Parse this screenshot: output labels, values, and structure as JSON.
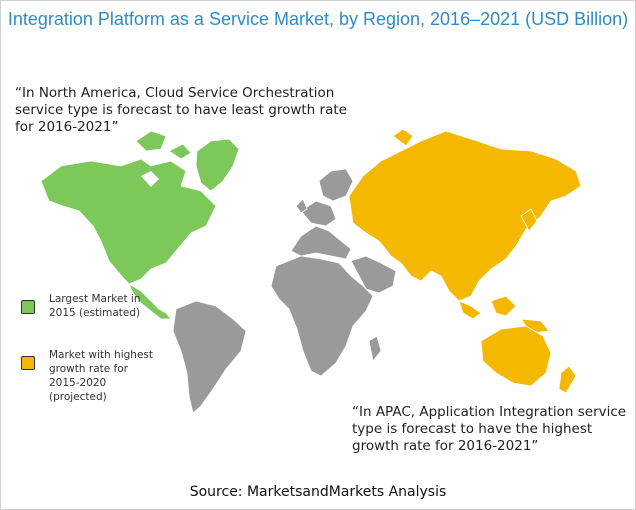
{
  "title": "Integration Platform as a Service Market, by Region, 2016–2021 (USD Billion)",
  "quotes": {
    "north_america": "“In North America, Cloud Service Orchestration service type is forecast to have least growth rate for 2016-2021”",
    "apac": "“In APAC, Application Integration service type is forecast to have the highest growth rate for 2016-2021”"
  },
  "legend": [
    {
      "label": "Largest Market in 2015 (estimated)",
      "color": "#7cc85a"
    },
    {
      "label": "Market with highest growth rate for 2015-2020 (projected)",
      "color": "#f5b800"
    }
  ],
  "regions": [
    {
      "name": "North America",
      "color": "#7cc85a"
    },
    {
      "name": "APAC",
      "color": "#f5b800"
    },
    {
      "name": "Rest of World",
      "color": "#9a9a9a"
    }
  ],
  "source": "Source: MarketsandMarkets Analysis"
}
